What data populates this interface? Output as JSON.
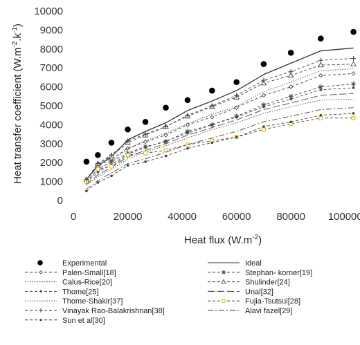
{
  "chart_data": {
    "type": "scatter",
    "xlabel": "Heat flux (W.m",
    "xlabel_sup": "-2",
    "xlabel_end": ")",
    "ylabel": "Heat transfer coefficient (W.m",
    "ylabel_sup": "-2",
    "ylabel_mid": ".k",
    "ylabel_sup2": "-1",
    "ylabel_end": ")",
    "xlim": [
      0,
      110000
    ],
    "ylim": [
      0,
      10000
    ],
    "xticks": [
      "0",
      "20000",
      "40000",
      "60000",
      "80000",
      "100000"
    ],
    "yticks": [
      "0",
      "1000",
      "2000",
      "3000",
      "4000",
      "5000",
      "6000",
      "7000",
      "8000",
      "9000",
      "10000"
    ],
    "grid": false,
    "legend_position": "bottom",
    "x": [
      4800,
      9000,
      14000,
      20000,
      26500,
      34000,
      42000,
      51000,
      60000,
      70000,
      80000,
      91000,
      103000
    ],
    "series": [
      {
        "name": "Experimental",
        "style": "markers",
        "marker": "dot",
        "values": [
          2050,
          2400,
          3050,
          3750,
          4150,
          4900,
          5300,
          5800,
          6250,
          7200,
          7800,
          8550,
          8900
        ]
      },
      {
        "name": "Ideal",
        "style": "solid",
        "values": [
          1100,
          1850,
          2300,
          3200,
          3650,
          4100,
          4750,
          5250,
          5800,
          6650,
          7250,
          7900,
          8050
        ]
      },
      {
        "name": "Palen-Small[18]",
        "style": "dash",
        "marker": "diamond",
        "values": [
          1100,
          1800,
          2200,
          2750,
          3100,
          3450,
          4000,
          4400,
          4900,
          5550,
          6000,
          6600,
          6700
        ]
      },
      {
        "name": "Stephan- korner[19]",
        "style": "dash",
        "marker": "asterisk",
        "values": [
          1000,
          1650,
          2050,
          2500,
          2850,
          3100,
          3650,
          4000,
          4450,
          5050,
          5500,
          6000,
          6150
        ]
      },
      {
        "name": "Calus-Rice[20]",
        "style": "dot",
        "values": [
          1000,
          1650,
          2050,
          2750,
          3150,
          3550,
          4050,
          4550,
          4950,
          5750,
          6250,
          6850,
          6950
        ]
      },
      {
        "name": "Shulinder[24]",
        "style": "dash",
        "marker": "triangle",
        "values": [
          1100,
          1950,
          2350,
          3050,
          3450,
          3900,
          4450,
          4950,
          5450,
          6200,
          6600,
          7150,
          7200
        ]
      },
      {
        "name": "Thome[25]",
        "style": "dash",
        "marker": "dot",
        "values": [
          950,
          1500,
          1900,
          2450,
          2800,
          3150,
          3550,
          4000,
          4400,
          4950,
          5350,
          5850,
          5950
        ]
      },
      {
        "name": "Unal[32]",
        "style": "longdash",
        "values": [
          850,
          1350,
          1750,
          2300,
          2650,
          3000,
          3450,
          3850,
          4250,
          4800,
          5150,
          5550,
          5650
        ]
      },
      {
        "name": "Thome-Shakir[37]",
        "style": "dot",
        "values": [
          800,
          1250,
          1650,
          2200,
          2550,
          2900,
          3300,
          3750,
          4100,
          4600,
          4950,
          5300,
          5350
        ]
      },
      {
        "name": "Fujia-Tsutsui[28]",
        "style": "dash",
        "marker": "square",
        "color": "#e8b400",
        "values": [
          1000,
          1650,
          1800,
          2400,
          2500,
          2650,
          2950,
          3150,
          3350,
          3750,
          4050,
          4350,
          4350
        ]
      },
      {
        "name": "Vinayak Rao-Balakrishnan[38]",
        "style": "dash",
        "marker": "plus",
        "values": [
          1100,
          1950,
          2400,
          3150,
          3500,
          3900,
          4500,
          5000,
          5550,
          6350,
          6800,
          7400,
          7500
        ]
      },
      {
        "name": "Alavi fazel[29]",
        "style": "dashdot",
        "values": [
          600,
          1050,
          1450,
          1950,
          2200,
          2550,
          2950,
          3300,
          3650,
          4150,
          4450,
          4800,
          4900
        ]
      },
      {
        "name": "Sun et al[30]",
        "style": "dash",
        "marker": "dot",
        "values": [
          500,
          950,
          1300,
          1850,
          2050,
          2350,
          2750,
          3050,
          3350,
          3900,
          4150,
          4500,
          4600
        ]
      }
    ]
  }
}
